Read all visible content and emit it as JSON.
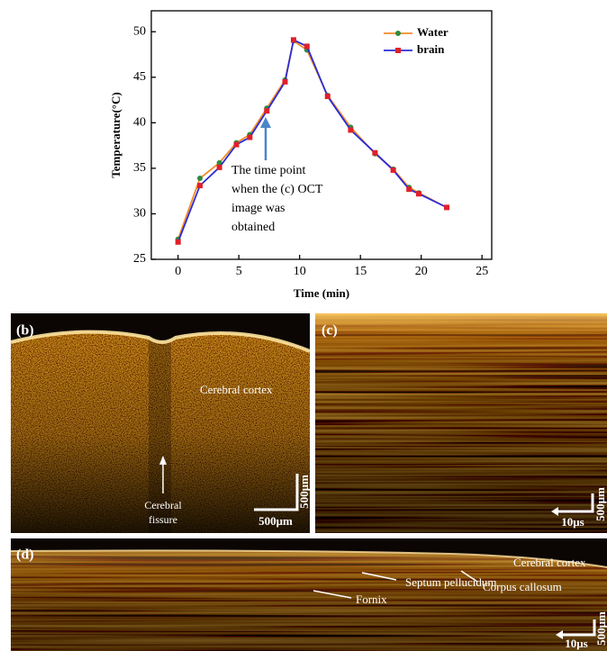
{
  "chart_data": {
    "type": "line",
    "xlabel": "Time (min)",
    "ylabel": "Temperature(°C)",
    "x": [
      0,
      1.8,
      3.4,
      4.8,
      5.9,
      7.3,
      8.8,
      9.5,
      10.6,
      12.3,
      14.2,
      16.2,
      17.7,
      19.0,
      19.8,
      22.1
    ],
    "series": [
      {
        "name": "Water",
        "color": "#f28c28",
        "marker_color": "#2e8b3e",
        "values": [
          27.2,
          33.9,
          35.6,
          37.8,
          38.7,
          41.6,
          44.7,
          49.0,
          48.0,
          43.0,
          39.5,
          36.6,
          34.9,
          32.9,
          32.3,
          30.7
        ]
      },
      {
        "name": "brain",
        "color": "#2b2bd6",
        "marker_color": "#e0202a",
        "values": [
          26.9,
          33.1,
          35.1,
          37.6,
          38.4,
          41.3,
          44.5,
          49.1,
          48.4,
          42.9,
          39.2,
          36.7,
          34.8,
          32.7,
          32.2,
          30.7
        ]
      }
    ],
    "xlim": [
      -2.2,
      25.8
    ],
    "xticks": [
      0,
      5,
      10,
      15,
      20,
      25
    ],
    "ylim": [
      25,
      52.3
    ],
    "yticks": [
      25,
      30,
      35,
      40,
      45,
      50
    ],
    "legend": "upper-right",
    "annotation": [
      "The time point",
      "when the (c) OCT",
      "image was",
      "obtained"
    ]
  },
  "panels": {
    "b": {
      "label": "(b)",
      "cortex": "Cerebral cortex",
      "fissure": [
        "Cerebral",
        "fissure"
      ],
      "scale_h": "500μm",
      "scale_v": "500μm"
    },
    "c": {
      "label": "(c)",
      "scale_h": "10μs",
      "scale_v": "500μm"
    },
    "d": {
      "label": "(d)",
      "cortex": "Cerebral cortex",
      "callosum": "Corpus callosum",
      "septum": "Septum pellucidum",
      "fornix": "Fornix",
      "scale_h": "10μs",
      "scale_v": "500μm"
    }
  }
}
